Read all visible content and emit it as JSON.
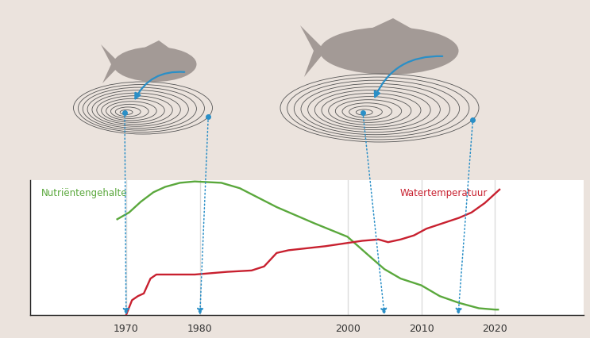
{
  "chart_data": {
    "type": "line",
    "series": [
      {
        "name": "Nutriëntengehalte",
        "color": "#5aa83c",
        "x": [
          1968.8,
          1970.4,
          1972.0,
          1973.7,
          1975.3,
          1977.3,
          1979.3,
          1982.9,
          1985.4,
          1990.4,
          1995.5,
          2000.0,
          2002.9,
          2005.0,
          2007.2,
          2010.0,
          2012.5,
          2015.1,
          2017.8,
          2020.0,
          2020.4
        ],
        "values": [
          71,
          76,
          84,
          91,
          95,
          98,
          99,
          98,
          94,
          80,
          68,
          58,
          44,
          34,
          27,
          22,
          14,
          9,
          5,
          4,
          4
        ]
      },
      {
        "name": "Watertemperatuur",
        "color": "#c8202f",
        "x": [
          1970.0,
          1970.8,
          1971.6,
          1972.4,
          1973.3,
          1974.1,
          1976.1,
          1979.3,
          1983.7,
          1987.0,
          1988.7,
          1990.4,
          1992.0,
          1997.0,
          2002.0,
          2004.2,
          2005.5,
          2007.2,
          2009.0,
          2010.7,
          2012.9,
          2015.1,
          2016.8,
          2018.6,
          2020.6
        ],
        "values": [
          0,
          11,
          14,
          16,
          27,
          30,
          30,
          30,
          32,
          33,
          36,
          46,
          48,
          51,
          55,
          56,
          54,
          56,
          59,
          64,
          68,
          72,
          76,
          83,
          93
        ]
      }
    ],
    "xlim": [
      1957,
      2032
    ],
    "xticks": [
      1970,
      1980,
      2000,
      2010,
      2020
    ],
    "ylim": [
      0,
      100
    ],
    "yticks": [],
    "tick_labels": "x",
    "grid": true,
    "ring_years": [
      [
        1970,
        1980
      ],
      [
        2005,
        2015
      ]
    ]
  }
}
